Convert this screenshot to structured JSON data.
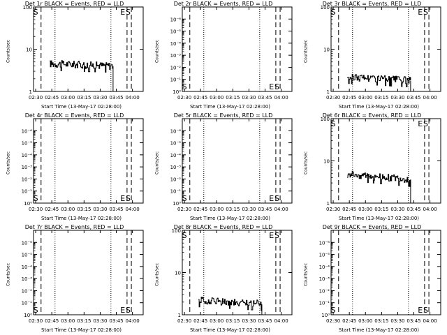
{
  "xlabel": "Start Time (13-May-17 02:28:00)",
  "ylabel": "Counts/sec",
  "x_ticks": [
    "02:30",
    "02:45",
    "03:00",
    "03:15",
    "03:30",
    "03:45",
    "04:00"
  ],
  "markers": {
    "S": "S",
    "E": "E"
  },
  "colors": {
    "events": "#000000",
    "lld": "#ff0000"
  },
  "chart_data": [
    {
      "type": "line",
      "title": "Det 1r BLACK = Events, RED = LLD",
      "yscale": "log",
      "ylim": [
        1,
        100
      ],
      "y_ticks": [
        "1",
        "10",
        "100"
      ],
      "xlim": [
        "02:28",
        "04:10"
      ],
      "vlines_dashed": [
        "02:35",
        "03:55",
        "03:59"
      ],
      "vlines_dotted": [
        "02:48",
        "03:40"
      ],
      "marker_labels": [
        {
          "text": "S",
          "x": "02:30",
          "pos": "top"
        },
        {
          "text": "E",
          "x": "03:51",
          "pos": "top"
        },
        {
          "text": "S",
          "x": "03:56",
          "pos": "top"
        }
      ],
      "series": [
        {
          "x": [
            "02:43",
            "03:42"
          ],
          "y": [
            4.5,
            4.0
          ],
          "style": "noisy-step"
        }
      ]
    },
    {
      "type": "line",
      "title": "Det 2r BLACK = Events, RED = LLD",
      "yscale": "log",
      "ylim": [
        1,
        1e-07
      ],
      "y_ticks": [
        "10⁰",
        "10⁻¹",
        "10⁻²",
        "10⁻³",
        "10⁻⁴",
        "10⁻⁵",
        "10⁻⁶"
      ],
      "xlim": [
        "02:28",
        "04:10"
      ],
      "vlines_dashed": [
        "02:35",
        "03:55",
        "03:59"
      ],
      "vlines_dotted": [
        "02:48",
        "03:40"
      ],
      "marker_labels": [
        {
          "text": "S",
          "x": "02:30",
          "pos": "bottom"
        },
        {
          "text": "E",
          "x": "03:51",
          "pos": "bottom"
        },
        {
          "text": "S",
          "x": "03:56",
          "pos": "bottom"
        }
      ],
      "series": []
    },
    {
      "type": "line",
      "title": "Det 3r BLACK = Events, RED = LLD",
      "yscale": "log",
      "ylim": [
        1,
        100
      ],
      "y_ticks": [
        "1",
        "10",
        "100"
      ],
      "xlim": [
        "02:28",
        "04:10"
      ],
      "vlines_dashed": [
        "02:35",
        "03:55",
        "03:59"
      ],
      "vlines_dotted": [
        "02:48",
        "03:40"
      ],
      "marker_labels": [
        {
          "text": "S",
          "x": "02:30",
          "pos": "top"
        },
        {
          "text": "E",
          "x": "03:51",
          "pos": "top"
        },
        {
          "text": "S",
          "x": "03:56",
          "pos": "top"
        }
      ],
      "series": [
        {
          "x": [
            "02:43",
            "03:42"
          ],
          "y": [
            2.2,
            1.8
          ],
          "style": "noisy-step"
        }
      ]
    },
    {
      "type": "line",
      "title": "Det 4r BLACK = Events, RED = LLD",
      "yscale": "log",
      "ylim": [
        1,
        1e-07
      ],
      "y_ticks": [
        "10⁰",
        "10⁻¹",
        "10⁻²",
        "10⁻³",
        "10⁻⁴",
        "10⁻⁵",
        "10⁻⁶"
      ],
      "xlim": [
        "02:28",
        "04:10"
      ],
      "vlines_dashed": [
        "02:35",
        "03:55",
        "03:59"
      ],
      "vlines_dotted": [
        "02:48",
        "03:40"
      ],
      "marker_labels": [
        {
          "text": "S",
          "x": "02:30",
          "pos": "bottom"
        },
        {
          "text": "E",
          "x": "03:51",
          "pos": "bottom"
        },
        {
          "text": "S",
          "x": "03:56",
          "pos": "bottom"
        }
      ],
      "series": []
    },
    {
      "type": "line",
      "title": "Det 5r BLACK = Events, RED = LLD",
      "yscale": "log",
      "ylim": [
        1,
        1e-07
      ],
      "y_ticks": [
        "10⁰",
        "10⁻¹",
        "10⁻²",
        "10⁻³",
        "10⁻⁴",
        "10⁻⁵",
        "10⁻⁶"
      ],
      "xlim": [
        "02:28",
        "04:10"
      ],
      "vlines_dashed": [
        "02:35",
        "03:55",
        "03:59"
      ],
      "vlines_dotted": [
        "02:48",
        "03:40"
      ],
      "marker_labels": [
        {
          "text": "S",
          "x": "02:30",
          "pos": "bottom"
        },
        {
          "text": "E",
          "x": "03:51",
          "pos": "bottom"
        },
        {
          "text": "S",
          "x": "03:56",
          "pos": "bottom"
        }
      ],
      "series": []
    },
    {
      "type": "line",
      "title": "Det 6r BLACK = Events, RED = LLD",
      "yscale": "log",
      "ylim": [
        1,
        100
      ],
      "y_ticks": [
        "1",
        "10",
        "100"
      ],
      "xlim": [
        "02:28",
        "04:10"
      ],
      "vlines_dashed": [
        "02:35",
        "03:55",
        "03:59"
      ],
      "vlines_dotted": [
        "02:48",
        "03:40"
      ],
      "marker_labels": [
        {
          "text": "S",
          "x": "02:30",
          "pos": "top"
        },
        {
          "text": "E",
          "x": "03:51",
          "pos": "top"
        },
        {
          "text": "S",
          "x": "03:56",
          "pos": "top"
        }
      ],
      "series": [
        {
          "x": [
            "02:43",
            "03:42"
          ],
          "y": [
            4.8,
            3.5
          ],
          "style": "noisy-step"
        }
      ]
    },
    {
      "type": "line",
      "title": "Det 7r BLACK = Events, RED = LLD",
      "yscale": "log",
      "ylim": [
        1,
        1e-07
      ],
      "y_ticks": [
        "10⁰",
        "10⁻¹",
        "10⁻²",
        "10⁻³",
        "10⁻⁴",
        "10⁻⁵",
        "10⁻⁶"
      ],
      "xlim": [
        "02:28",
        "04:10"
      ],
      "vlines_dashed": [
        "02:35",
        "03:55",
        "03:59"
      ],
      "vlines_dotted": [
        "02:48",
        "03:40"
      ],
      "marker_labels": [
        {
          "text": "S",
          "x": "02:30",
          "pos": "bottom"
        },
        {
          "text": "E",
          "x": "03:51",
          "pos": "bottom"
        },
        {
          "text": "S",
          "x": "03:56",
          "pos": "bottom"
        }
      ],
      "series": []
    },
    {
      "type": "line",
      "title": "Det 8r BLACK = Events, RED = LLD",
      "yscale": "log",
      "ylim": [
        1,
        100
      ],
      "y_ticks": [
        "1",
        "10",
        "100"
      ],
      "xlim": [
        "02:28",
        "04:10"
      ],
      "vlines_dashed": [
        "02:35",
        "03:55",
        "03:59"
      ],
      "vlines_dotted": [
        "02:48",
        "03:40"
      ],
      "marker_labels": [
        {
          "text": "S",
          "x": "02:30",
          "pos": "top"
        },
        {
          "text": "E",
          "x": "03:51",
          "pos": "top"
        },
        {
          "text": "S",
          "x": "03:56",
          "pos": "top"
        }
      ],
      "series": [
        {
          "x": [
            "02:43",
            "03:42"
          ],
          "y": [
            2.2,
            1.8
          ],
          "style": "noisy-step"
        }
      ]
    },
    {
      "type": "line",
      "title": "Det 9r BLACK = Events, RED = LLD",
      "yscale": "log",
      "ylim": [
        1,
        1e-07
      ],
      "y_ticks": [
        "10⁰",
        "10⁻¹",
        "10⁻²",
        "10⁻³",
        "10⁻⁴",
        "10⁻⁵",
        "10⁻⁶"
      ],
      "xlim": [
        "02:28",
        "04:10"
      ],
      "vlines_dashed": [
        "02:35",
        "03:55",
        "03:59"
      ],
      "vlines_dotted": [
        "02:48",
        "03:40"
      ],
      "marker_labels": [
        {
          "text": "S",
          "x": "02:30",
          "pos": "bottom"
        },
        {
          "text": "E",
          "x": "03:51",
          "pos": "bottom"
        },
        {
          "text": "S",
          "x": "03:56",
          "pos": "bottom"
        }
      ],
      "series": []
    }
  ]
}
